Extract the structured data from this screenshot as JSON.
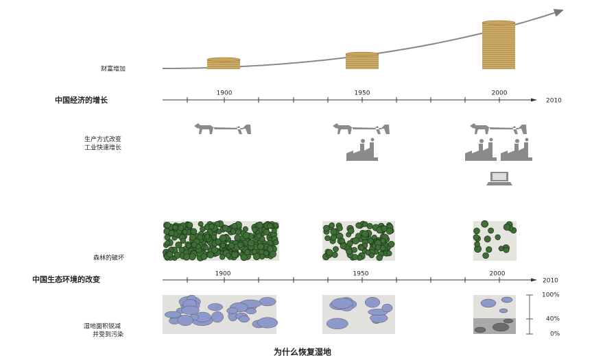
{
  "wealth": {
    "label": "财富增加"
  },
  "economy": {
    "title": "中国经济的增长",
    "years": [
      "1900",
      "1950",
      "2000"
    ],
    "end": "2010"
  },
  "production": {
    "lines": [
      "生产方式改变",
      "工业快速增长"
    ]
  },
  "forest": {
    "label": "森林的破坏"
  },
  "ecology": {
    "title": "中国生态环境的改变",
    "years": [
      "1900",
      "1950",
      "2000"
    ],
    "end": "2010"
  },
  "wetland": {
    "lines": [
      "湿地面积锐减",
      "并受到污染"
    ],
    "scale": [
      "100%",
      "40%",
      "0%"
    ]
  },
  "caption": "为什么恢复湿地"
}
